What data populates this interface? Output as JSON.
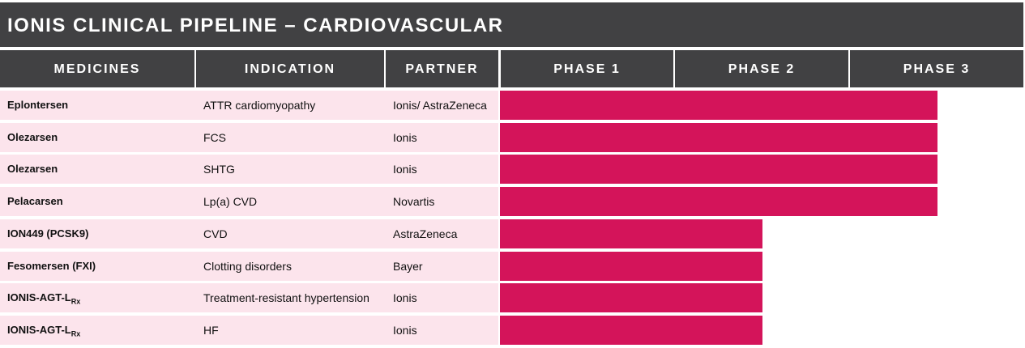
{
  "title": "IONIS CLINICAL PIPELINE – CARDIOVASCULAR",
  "columns": [
    "MEDICINES",
    "INDICATION",
    "PARTNER",
    "PHASE 1",
    "PHASE 2",
    "PHASE 3"
  ],
  "rows": [
    {
      "medicine": "Eplontersen",
      "indication": "ATTR cardiomyopathy",
      "partner": "Ionis/ AstraZeneca",
      "phase": 3
    },
    {
      "medicine": "Olezarsen",
      "indication": "FCS",
      "partner": "Ionis",
      "phase": 3
    },
    {
      "medicine": "Olezarsen",
      "indication": "SHTG",
      "partner": "Ionis",
      "phase": 3
    },
    {
      "medicine": "Pelacarsen",
      "indication": "Lp(a) CVD",
      "partner": "Novartis",
      "phase": 3
    },
    {
      "medicine": "ION449 (PCSK9)",
      "indication": "CVD",
      "partner": "AstraZeneca",
      "phase": 2
    },
    {
      "medicine": "Fesomersen (FXI)",
      "indication": "Clotting disorders",
      "partner": "Bayer",
      "phase": 2
    },
    {
      "medicine": "IONIS-AGT-L",
      "medicine_sub": "Rx",
      "indication": "Treatment-resistant hypertension",
      "partner": "Ionis",
      "phase": 2
    },
    {
      "medicine": "IONIS-AGT-L",
      "medicine_sub": "Rx",
      "indication": "HF",
      "partner": "Ionis",
      "phase": 2
    }
  ]
}
